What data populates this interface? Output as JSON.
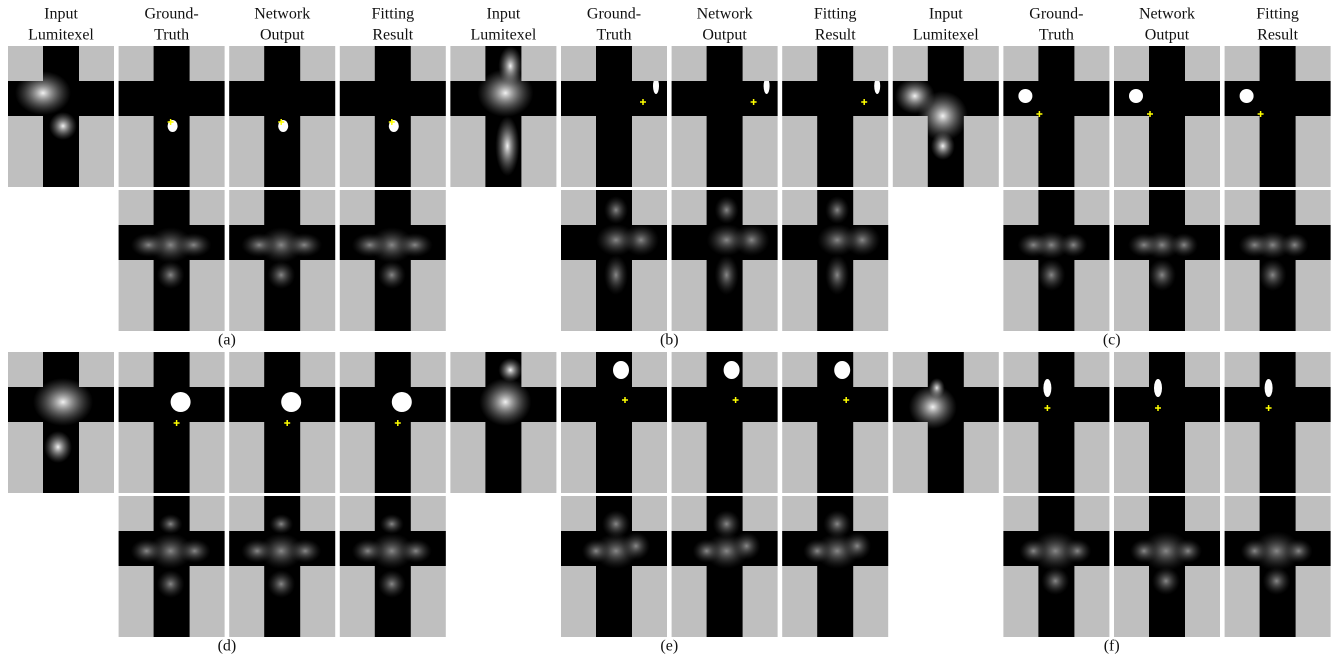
{
  "column_headers": [
    [
      "Input",
      "Lumitexel"
    ],
    [
      "Ground-",
      "Truth"
    ],
    [
      "Network",
      "Output"
    ],
    [
      "Fitting",
      "Result"
    ],
    [
      "Input",
      "Lumitexel"
    ],
    [
      "Ground-",
      "Truth"
    ],
    [
      "Network",
      "Output"
    ],
    [
      "Fitting",
      "Result"
    ],
    [
      "Input",
      "Lumitexel"
    ],
    [
      "Ground-",
      "Truth"
    ],
    [
      "Network",
      "Output"
    ],
    [
      "Fitting",
      "Result"
    ]
  ],
  "panels": [
    {
      "label": "(a)"
    },
    {
      "label": "(b)"
    },
    {
      "label": "(c)"
    },
    {
      "label": "(d)"
    },
    {
      "label": "(e)"
    },
    {
      "label": "(f)"
    }
  ]
}
